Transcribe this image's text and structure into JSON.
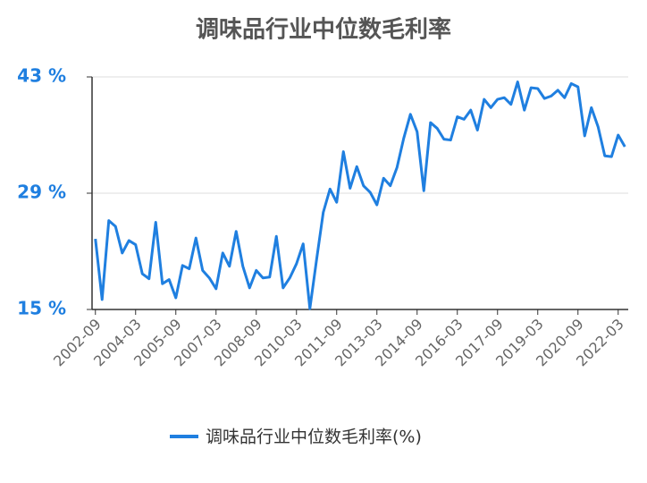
{
  "chart_data": {
    "type": "line",
    "title": "调味品行业中位数毛利率",
    "categories": [
      "2002-09",
      null,
      null,
      null,
      null,
      null,
      "2004-03",
      null,
      null,
      null,
      null,
      null,
      "2005-09",
      null,
      null,
      null,
      null,
      null,
      "2007-03",
      null,
      null,
      null,
      null,
      null,
      "2008-09",
      null,
      null,
      null,
      null,
      null,
      "2010-03",
      null,
      null,
      null,
      null,
      null,
      "2011-09",
      null,
      null,
      null,
      null,
      null,
      "2013-03",
      null,
      null,
      null,
      null,
      null,
      "2014-09",
      null,
      null,
      null,
      null,
      null,
      "2016-03",
      null,
      null,
      null,
      null,
      null,
      "2017-09",
      null,
      null,
      null,
      null,
      null,
      "2019-03",
      null,
      null,
      null,
      null,
      null,
      "2020-09",
      null,
      null,
      null,
      null,
      null,
      "2022-03",
      null
    ],
    "series": [
      {
        "name": "调味品行业中位数毛利率(%)",
        "color": "#1f7fe0",
        "values": [
          23.5,
          16.2,
          25.7,
          25.0,
          21.8,
          23.3,
          22.8,
          19.3,
          18.7,
          25.5,
          18.1,
          18.6,
          16.4,
          20.3,
          19.9,
          23.6,
          19.7,
          18.8,
          17.5,
          21.8,
          20.2,
          24.4,
          20.2,
          17.6,
          19.7,
          18.8,
          18.9,
          23.8,
          17.6,
          18.8,
          20.5,
          22.9,
          15.1,
          21.0,
          26.7,
          29.5,
          27.9,
          34.0,
          29.6,
          32.2,
          29.9,
          29.1,
          27.6,
          30.8,
          29.9,
          32.1,
          35.6,
          38.5,
          36.4,
          29.3,
          37.5,
          36.8,
          35.5,
          35.4,
          38.2,
          37.9,
          39.0,
          36.6,
          40.3,
          39.3,
          40.3,
          40.5,
          39.7,
          42.4,
          39.0,
          41.7,
          41.6,
          40.4,
          40.7,
          41.4,
          40.5,
          42.2,
          41.8,
          35.9,
          39.3,
          37.0,
          33.5,
          33.4,
          36.0,
          34.6
        ]
      }
    ],
    "ylim": [
      15,
      43
    ],
    "yticks": [
      {
        "value": 15,
        "label": "15 %"
      },
      {
        "value": 29,
        "label": "29 %"
      },
      {
        "value": 43,
        "label": "43 %"
      }
    ],
    "grid": true
  }
}
